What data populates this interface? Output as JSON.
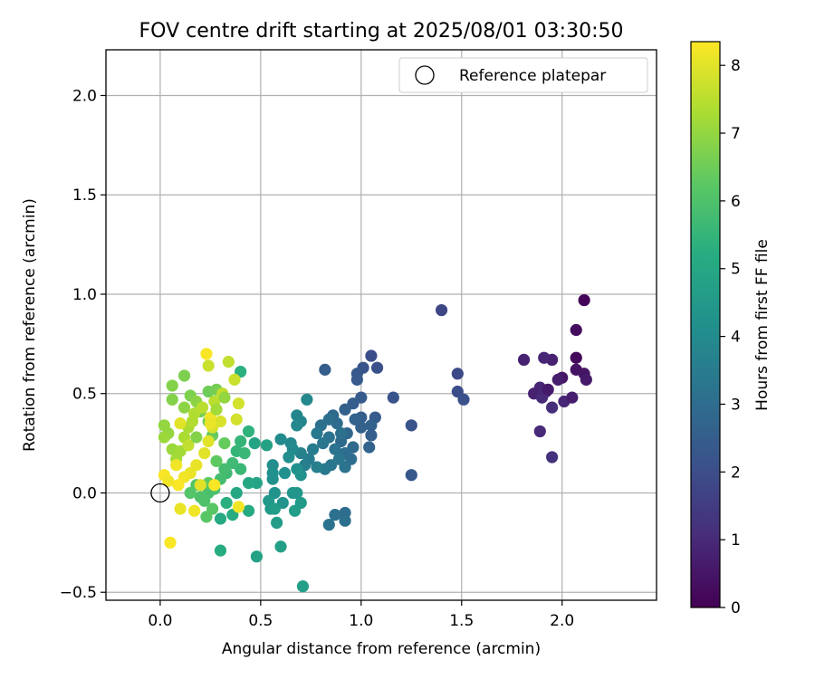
{
  "chart_data": {
    "type": "scatter",
    "title": "FOV centre drift starting at 2025/08/01 03:30:50",
    "xlabel": "Angular distance from reference (arcmin)",
    "ylabel": "Rotation from reference (arcmin)",
    "xlim": [
      -0.27,
      2.47
    ],
    "ylim": [
      -0.54,
      2.23
    ],
    "x_ticks": [
      0.0,
      0.5,
      1.0,
      1.5,
      2.0
    ],
    "x_tick_labels": [
      "0.0",
      "0.5",
      "1.0",
      "1.5",
      "2.0"
    ],
    "y_ticks": [
      -0.5,
      0.0,
      0.5,
      1.0,
      1.5,
      2.0
    ],
    "y_tick_labels": [
      "−0.5",
      "0.0",
      "0.5",
      "1.0",
      "1.5",
      "2.0"
    ],
    "grid": true,
    "legend": {
      "position": "top-right",
      "entries": [
        "Reference platepar"
      ]
    },
    "reference_point": {
      "x": 0.0,
      "y": 0.0,
      "label": "Reference platepar"
    },
    "colorbar": {
      "label": "Hours from first FF file",
      "colormap": "viridis",
      "range": [
        0,
        8.35
      ],
      "ticks": [
        0,
        1,
        2,
        3,
        4,
        5,
        6,
        7,
        8
      ],
      "tick_labels": [
        "0",
        "1",
        "2",
        "3",
        "4",
        "5",
        "6",
        "7",
        "8"
      ]
    },
    "colormap_stops": [
      "#440154",
      "#472c7a",
      "#3b518b",
      "#2c718e",
      "#21908d",
      "#27ad81",
      "#5cc863",
      "#aadc32",
      "#fde725"
    ],
    "points": [
      [
        2.11,
        0.97,
        0.1
      ],
      [
        2.07,
        0.82,
        0.3
      ],
      [
        2.07,
        0.68,
        0.2
      ],
      [
        2.07,
        0.62,
        0.4
      ],
      [
        2.11,
        0.6,
        0.5
      ],
      [
        2.12,
        0.57,
        0.6
      ],
      [
        2.0,
        0.58,
        0.5
      ],
      [
        1.98,
        0.57,
        0.7
      ],
      [
        1.95,
        0.67,
        0.8
      ],
      [
        1.91,
        0.68,
        0.9
      ],
      [
        1.81,
        0.67,
        0.8
      ],
      [
        1.89,
        0.53,
        0.9
      ],
      [
        1.92,
        0.51,
        1.0
      ],
      [
        1.86,
        0.5,
        0.8
      ],
      [
        1.9,
        0.48,
        1.0
      ],
      [
        1.95,
        0.43,
        1.1
      ],
      [
        2.01,
        0.46,
        0.9
      ],
      [
        2.05,
        0.48,
        0.7
      ],
      [
        1.89,
        0.31,
        1.0
      ],
      [
        1.95,
        0.18,
        1.2
      ],
      [
        1.93,
        0.52,
        0.6
      ],
      [
        1.4,
        0.92,
        1.8
      ],
      [
        1.48,
        0.6,
        1.9
      ],
      [
        1.48,
        0.51,
        2.0
      ],
      [
        1.51,
        0.47,
        2.1
      ],
      [
        1.25,
        0.34,
        2.2
      ],
      [
        1.25,
        0.09,
        2.3
      ],
      [
        1.16,
        0.48,
        2.2
      ],
      [
        1.05,
        0.69,
        2.0
      ],
      [
        1.08,
        0.63,
        2.1
      ],
      [
        1.01,
        0.63,
        2.2
      ],
      [
        0.98,
        0.6,
        2.3
      ],
      [
        0.98,
        0.57,
        2.4
      ],
      [
        1.0,
        0.48,
        2.4
      ],
      [
        0.96,
        0.45,
        2.5
      ],
      [
        0.92,
        0.42,
        2.6
      ],
      [
        1.07,
        0.38,
        2.4
      ],
      [
        1.05,
        0.34,
        2.6
      ],
      [
        1.05,
        0.29,
        2.5
      ],
      [
        1.04,
        0.23,
        2.7
      ],
      [
        1.0,
        0.38,
        2.5
      ],
      [
        1.0,
        0.33,
        2.6
      ],
      [
        0.97,
        0.37,
        2.7
      ],
      [
        0.82,
        0.62,
        2.5
      ],
      [
        0.93,
        0.3,
        2.8
      ],
      [
        0.9,
        0.26,
        2.9
      ],
      [
        0.96,
        0.23,
        2.9
      ],
      [
        0.92,
        0.2,
        3.0
      ],
      [
        0.95,
        0.17,
        3.0
      ],
      [
        0.88,
        0.35,
        3.0
      ],
      [
        0.86,
        0.39,
        2.9
      ],
      [
        0.84,
        0.37,
        3.1
      ],
      [
        0.8,
        0.34,
        3.1
      ],
      [
        0.84,
        0.28,
        3.2
      ],
      [
        0.81,
        0.25,
        3.3
      ],
      [
        0.87,
        0.22,
        3.2
      ],
      [
        0.89,
        0.17,
        3.3
      ],
      [
        0.85,
        0.14,
        3.3
      ],
      [
        0.82,
        0.12,
        3.4
      ],
      [
        0.92,
        0.13,
        3.2
      ],
      [
        0.9,
        0.3,
        3.1
      ],
      [
        0.92,
        -0.1,
        3.0
      ],
      [
        0.92,
        -0.14,
        3.1
      ],
      [
        0.87,
        -0.11,
        3.1
      ],
      [
        0.84,
        -0.16,
        3.2
      ],
      [
        0.78,
        0.3,
        3.4
      ],
      [
        0.76,
        0.22,
        3.5
      ],
      [
        0.74,
        0.17,
        3.5
      ],
      [
        0.72,
        0.14,
        3.6
      ],
      [
        0.78,
        0.13,
        3.6
      ],
      [
        0.7,
        0.2,
        3.7
      ],
      [
        0.68,
        0.39,
        3.8
      ],
      [
        0.7,
        0.36,
        3.8
      ],
      [
        0.68,
        0.34,
        3.9
      ],
      [
        0.73,
        0.47,
        3.9
      ],
      [
        0.65,
        0.25,
        3.9
      ],
      [
        0.6,
        0.27,
        4.0
      ],
      [
        0.66,
        0.22,
        4.0
      ],
      [
        0.64,
        0.18,
        4.1
      ],
      [
        0.56,
        0.14,
        4.1
      ],
      [
        0.56,
        0.1,
        4.2
      ],
      [
        0.56,
        0.07,
        4.2
      ],
      [
        0.62,
        0.1,
        4.2
      ],
      [
        0.68,
        0.12,
        4.2
      ],
      [
        0.7,
        0.09,
        4.3
      ],
      [
        0.57,
        0.0,
        4.3
      ],
      [
        0.61,
        -0.05,
        4.3
      ],
      [
        0.66,
        0.0,
        4.4
      ],
      [
        0.68,
        0.0,
        4.4
      ],
      [
        0.7,
        -0.05,
        4.5
      ],
      [
        0.54,
        -0.04,
        4.5
      ],
      [
        0.55,
        -0.08,
        4.5
      ],
      [
        0.57,
        -0.08,
        4.6
      ],
      [
        0.67,
        -0.09,
        4.6
      ],
      [
        0.58,
        -0.15,
        4.6
      ],
      [
        0.6,
        -0.27,
        4.7
      ],
      [
        0.71,
        -0.47,
        4.7
      ],
      [
        0.48,
        -0.32,
        4.8
      ],
      [
        0.53,
        0.24,
        4.8
      ],
      [
        0.47,
        0.25,
        4.9
      ],
      [
        0.48,
        0.05,
        4.9
      ],
      [
        0.44,
        0.05,
        5.0
      ],
      [
        0.38,
        0.0,
        5.0
      ],
      [
        0.44,
        -0.09,
        5.1
      ],
      [
        0.3,
        -0.13,
        5.1
      ],
      [
        0.3,
        -0.29,
        5.2
      ],
      [
        0.36,
        -0.11,
        5.2
      ],
      [
        0.33,
        -0.05,
        5.3
      ],
      [
        0.4,
        0.61,
        5.3
      ],
      [
        0.44,
        0.31,
        5.4
      ],
      [
        0.4,
        0.26,
        5.5
      ],
      [
        0.38,
        0.21,
        5.5
      ],
      [
        0.42,
        0.2,
        5.6
      ],
      [
        0.4,
        0.12,
        5.6
      ],
      [
        0.36,
        0.15,
        5.7
      ],
      [
        0.33,
        0.1,
        5.7
      ],
      [
        0.32,
        0.12,
        5.8
      ],
      [
        0.3,
        0.07,
        5.8
      ],
      [
        0.27,
        0.02,
        5.9
      ],
      [
        0.24,
        0.0,
        5.9
      ],
      [
        0.22,
        -0.04,
        6.0
      ],
      [
        0.2,
        -0.02,
        6.0
      ],
      [
        0.18,
        0.04,
        6.1
      ],
      [
        0.15,
        0.0,
        6.1
      ],
      [
        0.23,
        -0.12,
        6.2
      ],
      [
        0.26,
        -0.08,
        6.2
      ],
      [
        0.24,
        0.05,
        6.3
      ],
      [
        0.28,
        0.16,
        6.3
      ],
      [
        0.32,
        0.25,
        6.4
      ],
      [
        0.26,
        0.29,
        6.4
      ],
      [
        0.24,
        0.36,
        6.5
      ],
      [
        0.24,
        0.51,
        6.5
      ],
      [
        0.28,
        0.52,
        6.6
      ],
      [
        0.2,
        0.41,
        6.6
      ],
      [
        0.15,
        0.49,
        6.7
      ],
      [
        0.12,
        0.59,
        6.7
      ],
      [
        0.06,
        0.54,
        6.8
      ],
      [
        0.06,
        0.47,
        6.8
      ],
      [
        0.12,
        0.43,
        6.9
      ],
      [
        0.18,
        0.46,
        6.9
      ],
      [
        0.02,
        0.34,
        7.0
      ],
      [
        0.04,
        0.3,
        7.0
      ],
      [
        0.02,
        0.28,
        7.1
      ],
      [
        0.06,
        0.22,
        7.1
      ],
      [
        0.08,
        0.17,
        7.2
      ],
      [
        0.1,
        0.21,
        7.2
      ],
      [
        0.12,
        0.28,
        7.3
      ],
      [
        0.14,
        0.33,
        7.3
      ],
      [
        0.16,
        0.36,
        7.4
      ],
      [
        0.17,
        0.4,
        7.4
      ],
      [
        0.21,
        0.43,
        7.5
      ],
      [
        0.27,
        0.46,
        7.5
      ],
      [
        0.31,
        0.5,
        7.6
      ],
      [
        0.34,
        0.66,
        7.6
      ],
      [
        0.24,
        0.64,
        7.7
      ],
      [
        0.37,
        0.57,
        7.7
      ],
      [
        0.39,
        0.45,
        7.8
      ],
      [
        0.38,
        0.37,
        7.8
      ],
      [
        0.3,
        0.36,
        7.9
      ],
      [
        0.26,
        0.33,
        7.9
      ],
      [
        0.24,
        0.26,
        8.0
      ],
      [
        0.22,
        0.2,
        8.0
      ],
      [
        0.18,
        0.14,
        8.1
      ],
      [
        0.15,
        0.1,
        8.1
      ],
      [
        0.12,
        0.08,
        8.2
      ],
      [
        0.08,
        0.14,
        8.2
      ],
      [
        0.09,
        0.04,
        8.3
      ],
      [
        0.02,
        0.09,
        8.3
      ],
      [
        0.04,
        0.06,
        8.2
      ],
      [
        0.1,
        -0.08,
        8.1
      ],
      [
        0.17,
        -0.09,
        8.2
      ],
      [
        0.05,
        -0.25,
        8.3
      ],
      [
        0.39,
        -0.07,
        8.2
      ],
      [
        0.23,
        0.7,
        8.3
      ],
      [
        0.25,
        0.38,
        8.2
      ],
      [
        0.25,
        0.35,
        8.1
      ],
      [
        0.27,
        0.04,
        8.3
      ],
      [
        0.2,
        0.04,
        8.0
      ],
      [
        0.14,
        0.24,
        7.6
      ],
      [
        0.1,
        0.35,
        8.0
      ],
      [
        0.28,
        0.42,
        7.2
      ],
      [
        0.32,
        0.48,
        7.0
      ],
      [
        0.18,
        0.28,
        6.8
      ]
    ]
  }
}
